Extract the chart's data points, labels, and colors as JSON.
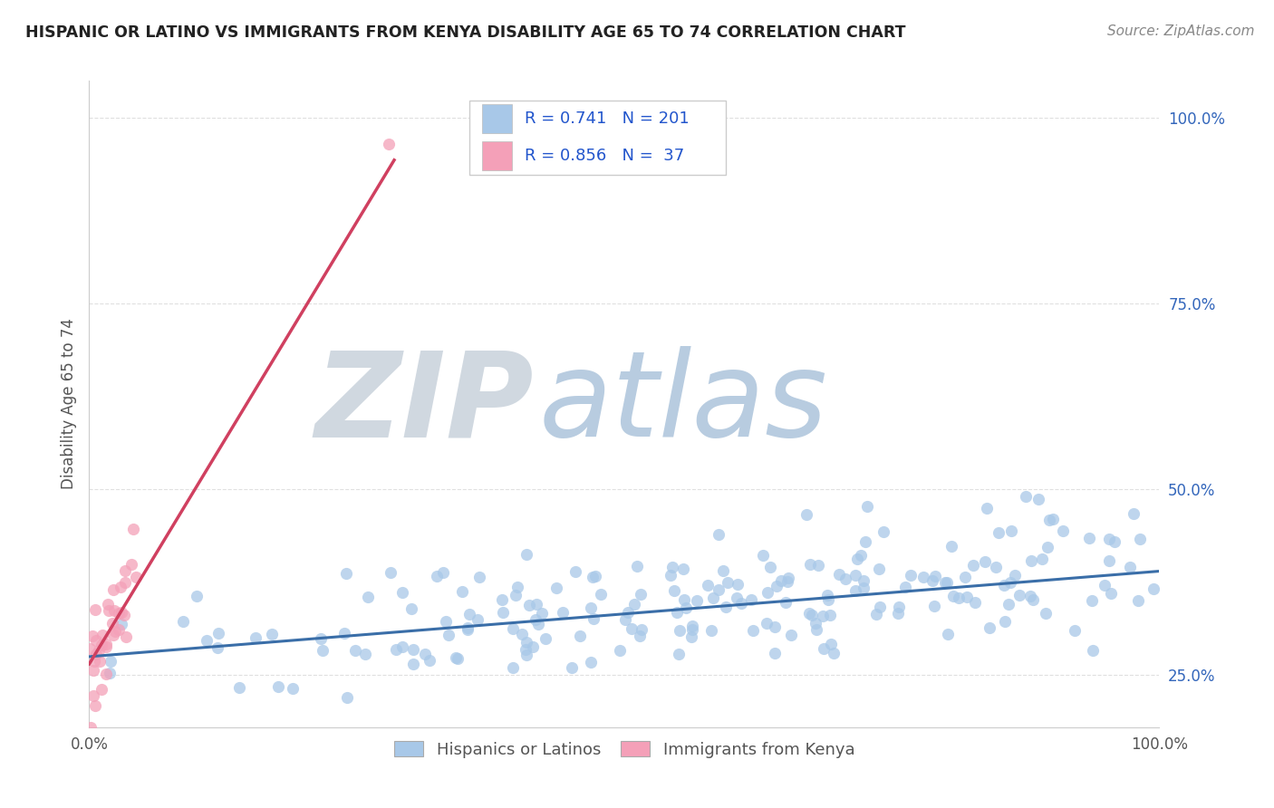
{
  "title": "HISPANIC OR LATINO VS IMMIGRANTS FROM KENYA DISABILITY AGE 65 TO 74 CORRELATION CHART",
  "source": "Source: ZipAtlas.com",
  "ylabel": "Disability Age 65 to 74",
  "xlabel": "",
  "xlim": [
    0.0,
    1.0
  ],
  "ylim": [
    0.18,
    1.05
  ],
  "yticks": [
    0.25,
    0.5,
    0.75,
    1.0
  ],
  "ytick_labels": [
    "25.0%",
    "50.0%",
    "75.0%",
    "100.0%"
  ],
  "blue_R": 0.741,
  "blue_N": 201,
  "pink_R": 0.856,
  "pink_N": 37,
  "blue_color": "#a8c8e8",
  "pink_color": "#f4a0b8",
  "blue_line_color": "#3a6ea8",
  "pink_line_color": "#d04060",
  "legend_label_blue": "Hispanics or Latinos",
  "legend_label_pink": "Immigrants from Kenya",
  "watermark_zip": "ZIP",
  "watermark_atlas": "atlas",
  "watermark_zip_color": "#d0d8e0",
  "watermark_atlas_color": "#b8cce0",
  "background_color": "#ffffff",
  "grid_color": "#e0e0e0",
  "title_color": "#222222",
  "source_color": "#888888",
  "stat_color": "#2255cc",
  "blue_intercept": 0.275,
  "blue_slope": 0.115,
  "pink_intercept": 0.265,
  "pink_slope": 2.38,
  "seed": 42
}
